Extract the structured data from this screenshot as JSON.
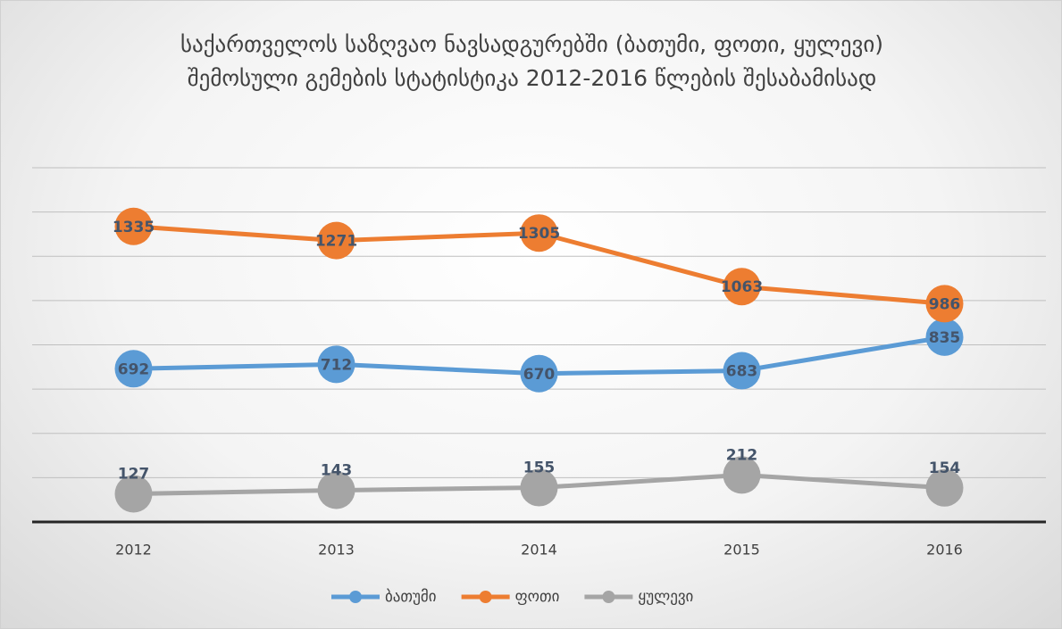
{
  "chart_data": {
    "type": "line",
    "title": "საქართველოს საზღვაო ნავსადგურებში (ბათუმი, ფოთი, ყულევი) შემოსული გემების სტატისტიკა 2012-2016 წლების შესაბამისად",
    "categories": [
      "2012",
      "2013",
      "2014",
      "2015",
      "2016"
    ],
    "series": [
      {
        "name": "ბათუმი",
        "color": "#5b9bd5",
        "values": [
          692,
          712,
          670,
          683,
          835
        ]
      },
      {
        "name": "ფოთი",
        "color": "#ed7d31",
        "values": [
          1335,
          1271,
          1305,
          1063,
          986
        ]
      },
      {
        "name": "ყულევი",
        "color": "#a5a5a5",
        "values": [
          127,
          143,
          155,
          212,
          154
        ]
      }
    ],
    "ylim": [
      0,
      1600
    ],
    "yticks": [
      0,
      200,
      400,
      600,
      800,
      1000,
      1200,
      1400,
      1600
    ],
    "grid": true,
    "legend": "bottom"
  }
}
